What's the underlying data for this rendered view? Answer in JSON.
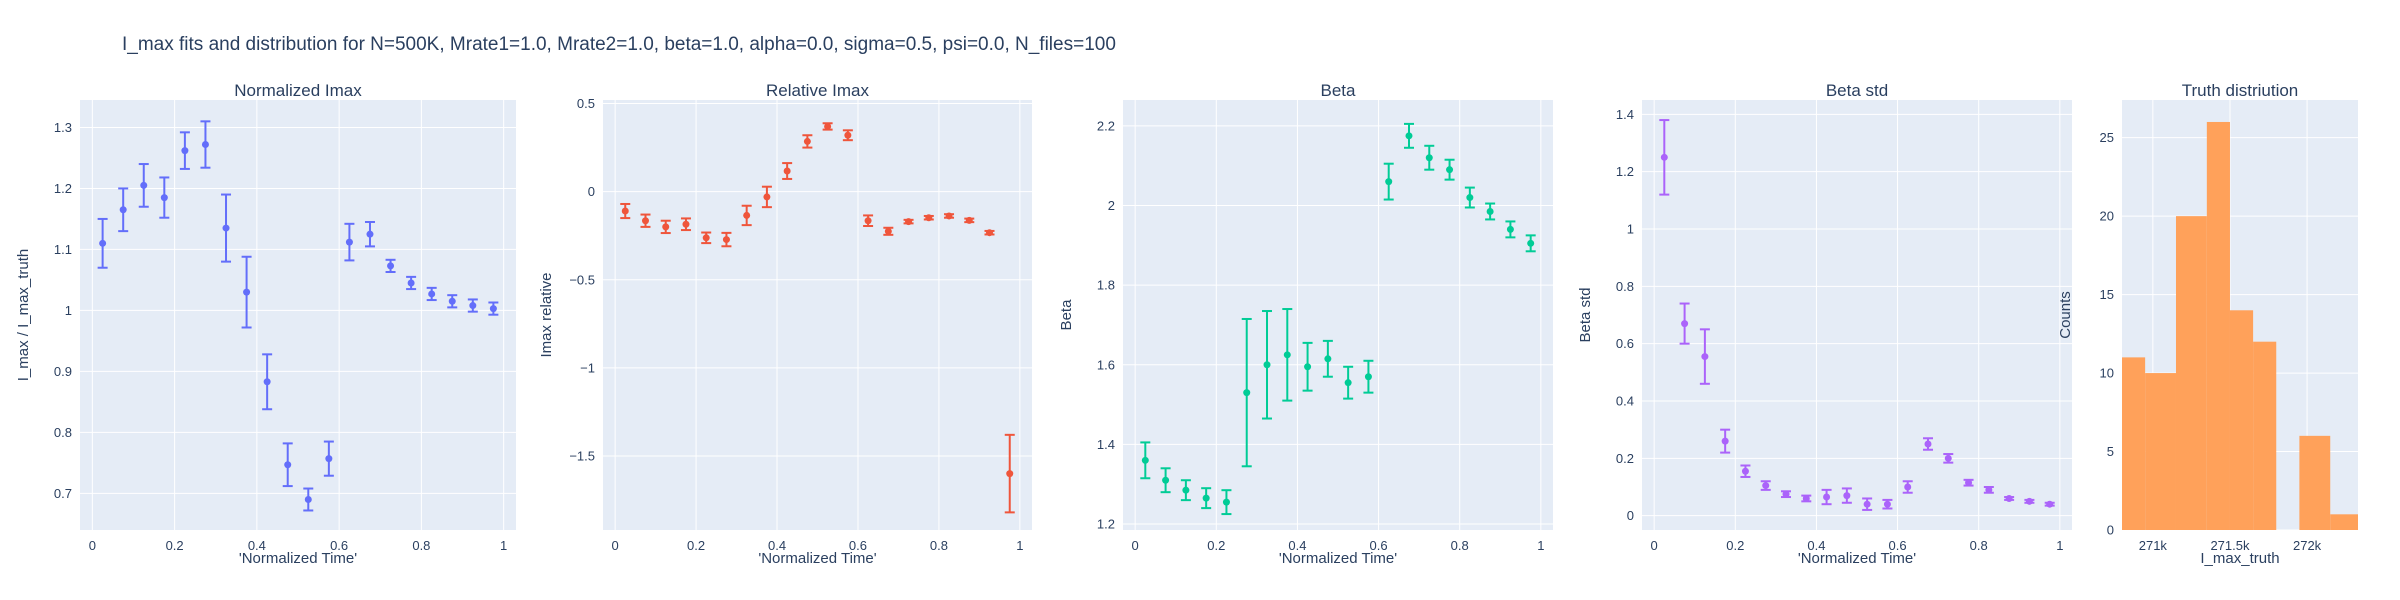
{
  "title": "I_max fits and distribution for N=500K, Mrate1=1.0, Mrate2=1.0, beta=1.0, alpha=0.0, sigma=0.5,  psi=0.0, N_files=100",
  "chart_data": [
    {
      "type": "scatter",
      "title": "Normalized Imax",
      "xlabel": "'Normalized Time'",
      "ylabel": "I_max / I_max_truth",
      "color": "#636EFA",
      "xlim": [
        -0.03,
        1.03
      ],
      "ylim": [
        0.64,
        1.345
      ],
      "xticks": [
        0,
        0.2,
        0.4,
        0.6,
        0.8,
        1
      ],
      "xtick_labels": [
        "0",
        "0.2",
        "0.4",
        "0.6",
        "0.8",
        "1"
      ],
      "yticks": [
        0.7,
        0.8,
        0.9,
        1.0,
        1.1,
        1.2,
        1.3
      ],
      "ytick_labels": [
        "0.7",
        "0.8",
        "0.9",
        "1",
        "1.1",
        "1.2",
        "1.3"
      ],
      "x": [
        0.025,
        0.075,
        0.125,
        0.175,
        0.225,
        0.275,
        0.325,
        0.375,
        0.425,
        0.475,
        0.525,
        0.575,
        0.625,
        0.675,
        0.725,
        0.775,
        0.825,
        0.875,
        0.925,
        0.975
      ],
      "y": [
        1.11,
        1.165,
        1.205,
        1.185,
        1.262,
        1.272,
        1.135,
        1.03,
        0.883,
        0.747,
        0.69,
        0.757,
        1.112,
        1.125,
        1.073,
        1.045,
        1.027,
        1.015,
        1.008,
        1.003
      ],
      "err": [
        0.04,
        0.035,
        0.035,
        0.033,
        0.03,
        0.038,
        0.055,
        0.058,
        0.045,
        0.035,
        0.018,
        0.028,
        0.03,
        0.02,
        0.01,
        0.01,
        0.01,
        0.01,
        0.01,
        0.01
      ]
    },
    {
      "type": "scatter",
      "title": "Relative Imax",
      "xlabel": "'Normalized Time'",
      "ylabel": "Imax relative",
      "color": "#EF553B",
      "xlim": [
        -0.03,
        1.03
      ],
      "ylim": [
        -1.92,
        0.52
      ],
      "xticks": [
        0,
        0.2,
        0.4,
        0.6,
        0.8,
        1
      ],
      "xtick_labels": [
        "0",
        "0.2",
        "0.4",
        "0.6",
        "0.8",
        "1"
      ],
      "yticks": [
        -1.5,
        -1,
        -0.5,
        0,
        0.5
      ],
      "ytick_labels": [
        "−1.5",
        "−1",
        "−0.5",
        "0",
        "0.5"
      ],
      "x": [
        0.025,
        0.075,
        0.125,
        0.175,
        0.225,
        0.275,
        0.325,
        0.375,
        0.425,
        0.475,
        0.525,
        0.575,
        0.625,
        0.675,
        0.725,
        0.775,
        0.825,
        0.875,
        0.925,
        0.975
      ],
      "y": [
        -0.11,
        -0.165,
        -0.2,
        -0.185,
        -0.262,
        -0.272,
        -0.135,
        -0.03,
        0.117,
        0.285,
        0.37,
        0.32,
        -0.165,
        -0.225,
        -0.17,
        -0.148,
        -0.138,
        -0.163,
        -0.233,
        -1.6
      ],
      "err": [
        0.04,
        0.035,
        0.035,
        0.033,
        0.03,
        0.038,
        0.055,
        0.058,
        0.045,
        0.035,
        0.018,
        0.028,
        0.03,
        0.02,
        0.01,
        0.01,
        0.01,
        0.01,
        0.01,
        0.22
      ]
    },
    {
      "type": "scatter",
      "title": "Beta",
      "xlabel": "'Normalized Time'",
      "ylabel": "Beta",
      "color": "#00CC96",
      "xlim": [
        -0.03,
        1.03
      ],
      "ylim": [
        1.185,
        2.265
      ],
      "xticks": [
        0,
        0.2,
        0.4,
        0.6,
        0.8,
        1
      ],
      "xtick_labels": [
        "0",
        "0.2",
        "0.4",
        "0.6",
        "0.8",
        "1"
      ],
      "yticks": [
        1.2,
        1.4,
        1.6,
        1.8,
        2.0,
        2.2
      ],
      "ytick_labels": [
        "1.2",
        "1.4",
        "1.6",
        "1.8",
        "2",
        "2.2"
      ],
      "x": [
        0.025,
        0.075,
        0.125,
        0.175,
        0.225,
        0.275,
        0.325,
        0.375,
        0.425,
        0.475,
        0.525,
        0.575,
        0.625,
        0.675,
        0.725,
        0.775,
        0.825,
        0.875,
        0.925,
        0.975
      ],
      "y": [
        1.36,
        1.31,
        1.285,
        1.265,
        1.255,
        1.53,
        1.6,
        1.625,
        1.595,
        1.615,
        1.555,
        1.57,
        2.06,
        2.175,
        2.12,
        2.09,
        2.02,
        1.985,
        1.94,
        1.905
      ],
      "err": [
        0.045,
        0.03,
        0.025,
        0.025,
        0.03,
        0.185,
        0.135,
        0.115,
        0.06,
        0.045,
        0.04,
        0.04,
        0.045,
        0.03,
        0.03,
        0.025,
        0.025,
        0.02,
        0.02,
        0.02
      ]
    },
    {
      "type": "scatter",
      "title": "Beta std",
      "xlabel": "'Normalized Time'",
      "ylabel": "Beta std",
      "color": "#AB63FA",
      "xlim": [
        -0.03,
        1.03
      ],
      "ylim": [
        -0.05,
        1.45
      ],
      "xticks": [
        0,
        0.2,
        0.4,
        0.6,
        0.8,
        1
      ],
      "xtick_labels": [
        "0",
        "0.2",
        "0.4",
        "0.6",
        "0.8",
        "1"
      ],
      "yticks": [
        0,
        0.2,
        0.4,
        0.6,
        0.8,
        1.0,
        1.2,
        1.4
      ],
      "ytick_labels": [
        "0",
        "0.2",
        "0.4",
        "0.6",
        "0.8",
        "1",
        "1.2",
        "1.4"
      ],
      "x": [
        0.025,
        0.075,
        0.125,
        0.175,
        0.225,
        0.275,
        0.325,
        0.375,
        0.425,
        0.475,
        0.525,
        0.575,
        0.625,
        0.675,
        0.725,
        0.775,
        0.825,
        0.875,
        0.925,
        0.975
      ],
      "y": [
        1.25,
        0.67,
        0.555,
        0.26,
        0.155,
        0.105,
        0.075,
        0.06,
        0.065,
        0.07,
        0.04,
        0.04,
        0.1,
        0.25,
        0.2,
        0.115,
        0.09,
        0.06,
        0.05,
        0.04
      ],
      "err": [
        0.13,
        0.07,
        0.095,
        0.04,
        0.02,
        0.015,
        0.01,
        0.01,
        0.025,
        0.025,
        0.02,
        0.015,
        0.02,
        0.02,
        0.015,
        0.01,
        0.01,
        0.005,
        0.005,
        0.005
      ]
    },
    {
      "type": "bar",
      "title": "Truth distriution",
      "xlabel": "I_max_truth",
      "ylabel": "Counts",
      "color": "#FFA15A",
      "xlim": [
        270800,
        272330
      ],
      "ylim": [
        0,
        27.4
      ],
      "xticks": [
        271000,
        271500,
        272000
      ],
      "xtick_labels": [
        "271k",
        "271.5k",
        "272k"
      ],
      "yticks": [
        0,
        5,
        10,
        15,
        20,
        25
      ],
      "ytick_labels": [
        "0",
        "5",
        "10",
        "15",
        "20",
        "25"
      ],
      "bins": [
        [
          270800,
          270950
        ],
        [
          270950,
          271150
        ],
        [
          271150,
          271350
        ],
        [
          271350,
          271500
        ],
        [
          271500,
          271650
        ],
        [
          271650,
          271800
        ],
        [
          271800,
          271950
        ],
        [
          271950,
          272150
        ],
        [
          272150,
          272330
        ]
      ],
      "values": [
        11,
        10,
        20,
        26,
        14,
        12,
        0,
        6,
        1
      ]
    }
  ]
}
